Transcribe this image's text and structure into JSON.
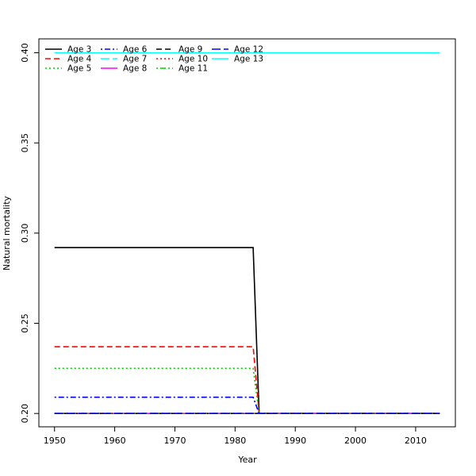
{
  "chart_data": {
    "type": "line",
    "title": "",
    "xlabel": "Year",
    "ylabel": "Natural mortality",
    "xlim": [
      1947.4,
      2016.6
    ],
    "ylim": [
      0.1926,
      0.4077
    ],
    "x_ticks": [
      1950,
      1960,
      1970,
      1980,
      1990,
      2000,
      2010
    ],
    "y_ticks": [
      0.2,
      0.25,
      0.3,
      0.35,
      0.4
    ],
    "y_tick_labels": [
      "0.20",
      "0.25",
      "0.30",
      "0.35",
      "0.40"
    ],
    "grid": false,
    "legend": {
      "position": "top-left",
      "columns": 4
    },
    "x_range": [
      1950,
      2014
    ],
    "series": [
      {
        "name": "Age 3",
        "color": "#000000",
        "dash": "solid",
        "points": [
          [
            1950,
            0.292
          ],
          [
            1983,
            0.292
          ],
          [
            1984,
            0.2
          ],
          [
            2014,
            0.2
          ]
        ]
      },
      {
        "name": "Age 4",
        "color": "#ff0000",
        "dash": "dashed",
        "points": [
          [
            1950,
            0.237
          ],
          [
            1983,
            0.237
          ],
          [
            1984,
            0.2
          ],
          [
            2014,
            0.2
          ]
        ]
      },
      {
        "name": "Age 5",
        "color": "#00cd00",
        "dash": "dotted",
        "points": [
          [
            1950,
            0.225
          ],
          [
            1983,
            0.225
          ],
          [
            1984,
            0.2
          ],
          [
            2014,
            0.2
          ]
        ]
      },
      {
        "name": "Age 6",
        "color": "#0000ff",
        "dash": "dotdash",
        "points": [
          [
            1950,
            0.209
          ],
          [
            1983,
            0.209
          ],
          [
            1984,
            0.2
          ],
          [
            2014,
            0.2
          ]
        ]
      },
      {
        "name": "Age 7",
        "color": "#00ffff",
        "dash": "longdash",
        "points": [
          [
            1950,
            0.2
          ],
          [
            2014,
            0.2
          ]
        ]
      },
      {
        "name": "Age 8",
        "color": "#ff00ff",
        "dash": "solid",
        "points": [
          [
            1950,
            0.2
          ],
          [
            2014,
            0.2
          ]
        ]
      },
      {
        "name": "Age 9",
        "color": "#000000",
        "dash": "dashed",
        "points": [
          [
            1950,
            0.2
          ],
          [
            2014,
            0.2
          ]
        ]
      },
      {
        "name": "Age 10",
        "color": "#ff0000",
        "dash": "dotted",
        "points": [
          [
            1950,
            0.2
          ],
          [
            2014,
            0.2
          ]
        ]
      },
      {
        "name": "Age 11",
        "color": "#00cd00",
        "dash": "dotdash",
        "points": [
          [
            1950,
            0.2
          ],
          [
            2014,
            0.2
          ]
        ]
      },
      {
        "name": "Age 12",
        "color": "#0000ff",
        "dash": "longdash",
        "points": [
          [
            1950,
            0.2
          ],
          [
            2014,
            0.2
          ]
        ]
      },
      {
        "name": "Age 13",
        "color": "#00ffff",
        "dash": "solid",
        "points": [
          [
            1950,
            0.4
          ],
          [
            2014,
            0.4
          ]
        ]
      }
    ]
  }
}
